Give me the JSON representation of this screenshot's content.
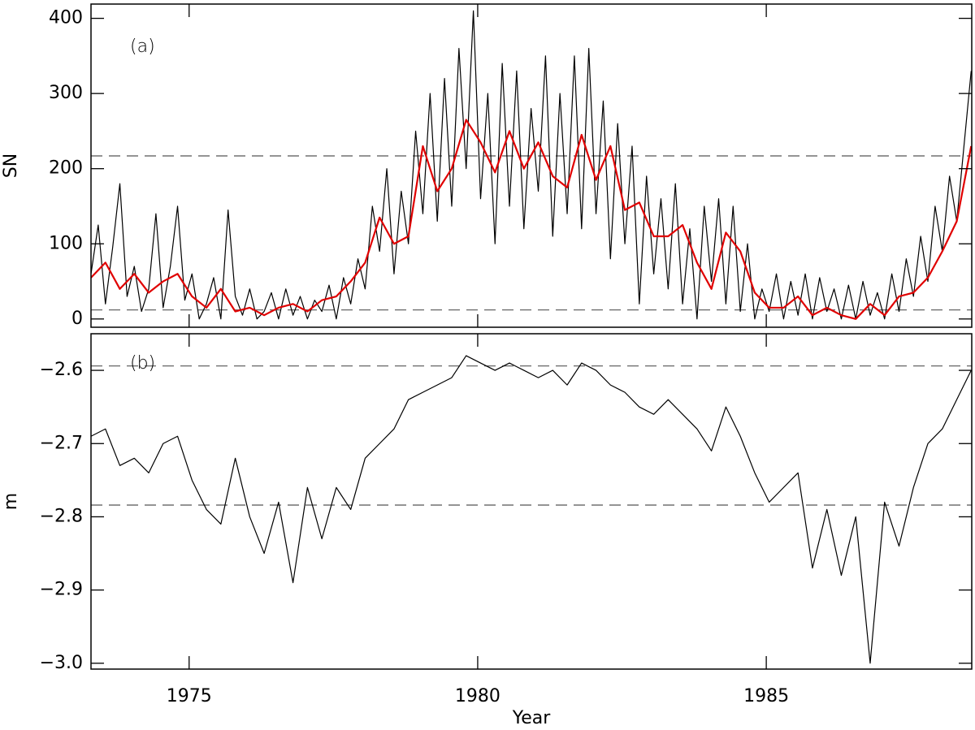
{
  "chart_data": [
    {
      "type": "line",
      "label": "(a)",
      "ylabel": "SN",
      "xlim": [
        1973.3,
        1988.56
      ],
      "ylim": [
        -11,
        419
      ],
      "xticks": [
        1975,
        1980,
        1985
      ],
      "yticks": [
        0,
        100,
        200,
        300,
        400
      ],
      "hlines": [
        217,
        12
      ],
      "series": [
        {
          "color": "#000000",
          "x": [
            1973.3,
            1973.425,
            1973.55,
            1973.675,
            1973.8,
            1973.925,
            1974.05,
            1974.175,
            1974.3,
            1974.425,
            1974.55,
            1974.675,
            1974.8,
            1974.925,
            1975.05,
            1975.175,
            1975.3,
            1975.425,
            1975.55,
            1975.675,
            1975.8,
            1975.925,
            1976.05,
            1976.175,
            1976.3,
            1976.425,
            1976.55,
            1976.675,
            1976.8,
            1976.925,
            1977.05,
            1977.175,
            1977.3,
            1977.425,
            1977.55,
            1977.675,
            1977.8,
            1977.925,
            1978.05,
            1978.175,
            1978.3,
            1978.425,
            1978.55,
            1978.675,
            1978.8,
            1978.925,
            1979.05,
            1979.175,
            1979.3,
            1979.425,
            1979.55,
            1979.675,
            1979.8,
            1979.925,
            1980.05,
            1980.175,
            1980.3,
            1980.425,
            1980.55,
            1980.675,
            1980.8,
            1980.925,
            1981.05,
            1981.175,
            1981.3,
            1981.425,
            1981.55,
            1981.675,
            1981.8,
            1981.925,
            1982.05,
            1982.175,
            1982.3,
            1982.425,
            1982.55,
            1982.675,
            1982.8,
            1982.925,
            1983.05,
            1983.175,
            1983.3,
            1983.425,
            1983.55,
            1983.675,
            1983.8,
            1983.925,
            1984.05,
            1984.175,
            1984.3,
            1984.425,
            1984.55,
            1984.675,
            1984.8,
            1984.925,
            1985.05,
            1985.175,
            1985.3,
            1985.425,
            1985.55,
            1985.675,
            1985.8,
            1985.925,
            1986.05,
            1986.175,
            1986.3,
            1986.425,
            1986.55,
            1986.675,
            1986.8,
            1986.925,
            1987.05,
            1987.175,
            1987.3,
            1987.425,
            1987.55,
            1987.675,
            1987.8,
            1987.925,
            1988.05,
            1988.175,
            1988.3,
            1988.425,
            1988.55
          ],
          "values": [
            60,
            125,
            20,
            95,
            180,
            30,
            70,
            10,
            40,
            140,
            15,
            70,
            150,
            25,
            60,
            0,
            20,
            55,
            0,
            145,
            30,
            5,
            40,
            0,
            10,
            35,
            0,
            40,
            5,
            30,
            0,
            25,
            10,
            45,
            0,
            55,
            20,
            80,
            40,
            150,
            90,
            200,
            60,
            170,
            100,
            250,
            140,
            300,
            130,
            320,
            150,
            360,
            200,
            410,
            160,
            300,
            100,
            340,
            150,
            330,
            120,
            280,
            170,
            350,
            110,
            300,
            140,
            350,
            120,
            360,
            140,
            290,
            80,
            260,
            100,
            230,
            20,
            190,
            60,
            160,
            40,
            180,
            20,
            120,
            0,
            150,
            50,
            160,
            20,
            150,
            10,
            100,
            0,
            40,
            10,
            60,
            0,
            50,
            5,
            60,
            0,
            55,
            10,
            40,
            0,
            45,
            0,
            50,
            5,
            35,
            0,
            60,
            10,
            80,
            30,
            110,
            50,
            150,
            90,
            190,
            130,
            230,
            330
          ]
        },
        {
          "color": "#e00000",
          "x": [
            1973.3,
            1973.55,
            1973.8,
            1974.05,
            1974.3,
            1974.55,
            1974.8,
            1975.05,
            1975.3,
            1975.55,
            1975.8,
            1976.05,
            1976.3,
            1976.55,
            1976.8,
            1977.05,
            1977.3,
            1977.55,
            1977.8,
            1978.05,
            1978.3,
            1978.55,
            1978.8,
            1979.05,
            1979.3,
            1979.55,
            1979.8,
            1980.05,
            1980.3,
            1980.55,
            1980.8,
            1981.05,
            1981.3,
            1981.55,
            1981.8,
            1982.05,
            1982.3,
            1982.55,
            1982.8,
            1983.05,
            1983.3,
            1983.55,
            1983.8,
            1984.05,
            1984.3,
            1984.55,
            1984.8,
            1985.05,
            1985.3,
            1985.55,
            1985.8,
            1986.05,
            1986.3,
            1986.55,
            1986.8,
            1987.05,
            1987.3,
            1987.55,
            1987.8,
            1988.05,
            1988.3,
            1988.55
          ],
          "values": [
            55,
            75,
            40,
            60,
            35,
            50,
            60,
            30,
            15,
            40,
            10,
            15,
            5,
            15,
            20,
            10,
            25,
            30,
            50,
            75,
            135,
            100,
            110,
            230,
            170,
            200,
            265,
            235,
            195,
            250,
            200,
            235,
            190,
            175,
            245,
            185,
            230,
            145,
            155,
            110,
            110,
            125,
            75,
            40,
            115,
            90,
            35,
            15,
            15,
            30,
            5,
            15,
            5,
            0,
            20,
            5,
            30,
            35,
            55,
            90,
            130,
            230
          ]
        }
      ]
    },
    {
      "type": "line",
      "label": "(b)",
      "ylabel": "m",
      "xlabel": "Year",
      "xlim": [
        1973.3,
        1988.56
      ],
      "ylim": [
        -3.008,
        -2.55
      ],
      "xticks": [
        1975,
        1980,
        1985
      ],
      "yticks": [
        {
          "value": -2.6,
          "label": "−2.6"
        },
        {
          "value": -2.7,
          "label": "−2.7"
        },
        {
          "value": -2.8,
          "label": "−2.8"
        },
        {
          "value": -2.9,
          "label": "−2.9"
        },
        {
          "value": -3.0,
          "label": "−3.0"
        }
      ],
      "hlines": [
        -2.594,
        -2.784
      ],
      "series": [
        {
          "color": "#000000",
          "x": [
            1973.3,
            1973.55,
            1973.8,
            1974.05,
            1974.3,
            1974.55,
            1974.8,
            1975.05,
            1975.3,
            1975.55,
            1975.8,
            1976.05,
            1976.3,
            1976.55,
            1976.8,
            1977.05,
            1977.3,
            1977.55,
            1977.8,
            1978.05,
            1978.3,
            1978.55,
            1978.8,
            1979.05,
            1979.3,
            1979.55,
            1979.8,
            1980.05,
            1980.3,
            1980.55,
            1980.8,
            1981.05,
            1981.3,
            1981.55,
            1981.8,
            1982.05,
            1982.3,
            1982.55,
            1982.8,
            1983.05,
            1983.3,
            1983.55,
            1983.8,
            1984.05,
            1984.3,
            1984.55,
            1984.8,
            1985.05,
            1985.3,
            1985.55,
            1985.8,
            1986.05,
            1986.3,
            1986.55,
            1986.8,
            1987.05,
            1987.3,
            1987.55,
            1987.8,
            1988.05,
            1988.3,
            1988.55
          ],
          "values": [
            -2.69,
            -2.68,
            -2.73,
            -2.72,
            -2.74,
            -2.7,
            -2.69,
            -2.75,
            -2.79,
            -2.81,
            -2.72,
            -2.8,
            -2.85,
            -2.78,
            -2.89,
            -2.76,
            -2.83,
            -2.76,
            -2.79,
            -2.72,
            -2.7,
            -2.68,
            -2.64,
            -2.63,
            -2.62,
            -2.61,
            -2.58,
            -2.59,
            -2.6,
            -2.59,
            -2.6,
            -2.61,
            -2.6,
            -2.62,
            -2.59,
            -2.6,
            -2.62,
            -2.63,
            -2.65,
            -2.66,
            -2.64,
            -2.66,
            -2.68,
            -2.71,
            -2.65,
            -2.69,
            -2.74,
            -2.78,
            -2.76,
            -2.74,
            -2.87,
            -2.79,
            -2.88,
            -2.8,
            -3.0,
            -2.78,
            -2.84,
            -2.76,
            -2.7,
            -2.68,
            -2.64,
            -2.6
          ]
        }
      ]
    }
  ]
}
